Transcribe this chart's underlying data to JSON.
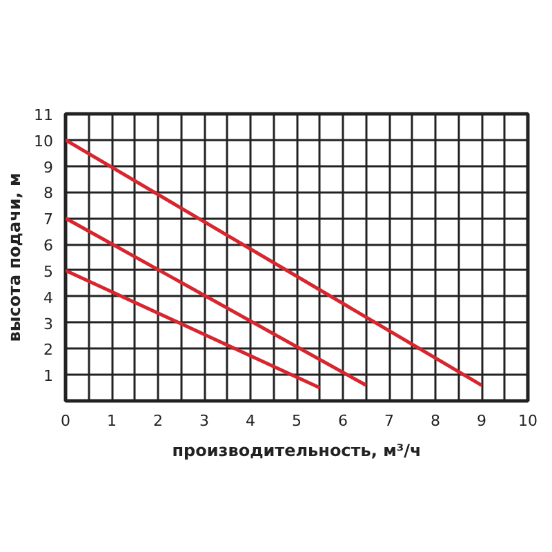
{
  "chart_data": {
    "type": "line",
    "xlabel": "производительность, м³/ч",
    "ylabel": "высота подачи, м",
    "xlim": [
      0,
      10
    ],
    "ylim": [
      0,
      11
    ],
    "xticks": [
      0,
      {
        "value": 0.5,
        "label": null
      },
      1,
      {
        "value": 1.5,
        "label": null
      },
      2,
      {
        "value": 2.5,
        "label": null
      },
      3,
      {
        "value": 3.5,
        "label": null
      },
      4,
      {
        "value": 4.5,
        "label": null
      },
      5,
      {
        "value": 5.5,
        "label": null
      },
      6,
      {
        "value": 6.5,
        "label": null
      },
      7,
      {
        "value": 7.5,
        "label": null
      },
      8,
      {
        "value": 8.5,
        "label": null
      },
      9,
      {
        "value": 9.5,
        "label": null
      },
      10
    ],
    "yticks": [
      1,
      2,
      3,
      4,
      5,
      6,
      7,
      8,
      9,
      10,
      11
    ],
    "grid": true,
    "marker": "none",
    "line_style": "solid",
    "series": [
      {
        "color": "#d7262e",
        "x": [
          0,
          9
        ],
        "values": [
          10,
          0.6
        ]
      },
      {
        "color": "#d7262e",
        "x": [
          0,
          6.5
        ],
        "values": [
          7,
          0.6
        ]
      },
      {
        "color": "#d7262e",
        "x": [
          0,
          5.5
        ],
        "values": [
          5,
          0.5
        ]
      }
    ]
  }
}
